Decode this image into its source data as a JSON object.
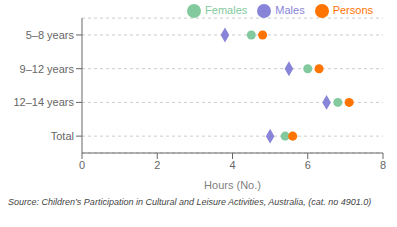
{
  "chart_data": {
    "type": "scatter",
    "categories": [
      "5–8 years",
      "9–12 years",
      "12–14 years",
      "Total"
    ],
    "series": [
      {
        "name": "Males",
        "color": "#8884d8",
        "marker": "diamond",
        "values": [
          3.8,
          5.5,
          6.5,
          5.0
        ]
      },
      {
        "name": "Females",
        "color": "#82ca9d",
        "marker": "circle",
        "values": [
          4.5,
          6.0,
          6.8,
          5.4
        ]
      },
      {
        "name": "Persons",
        "color": "#ff7300",
        "marker": "circle",
        "values": [
          4.8,
          6.3,
          7.1,
          5.6
        ]
      }
    ],
    "xlabel": "Hours (No.)",
    "xlim": [
      0,
      8
    ],
    "xticks": [
      0,
      2,
      4,
      6,
      8
    ],
    "grid": true,
    "legend": "upper right",
    "annotations": [
      "Source: Children’s Participation in Cultural and Leisure Activities, Australia,  (cat.  no 4901.0)"
    ]
  }
}
